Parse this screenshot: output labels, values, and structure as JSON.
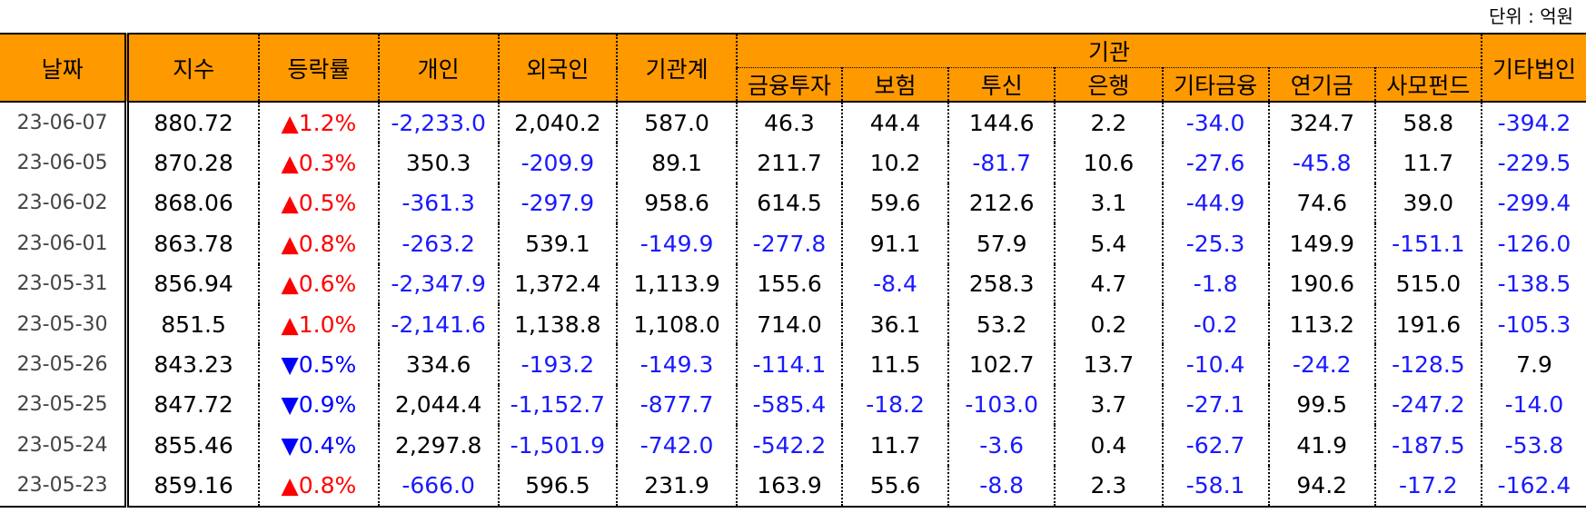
{
  "unit_label": "단위 : 억원",
  "headers": {
    "date": "날짜",
    "index": "지수",
    "change": "등락률",
    "individual": "개인",
    "foreign": "외국인",
    "institution_total": "기관계",
    "institution": "기관",
    "sub": [
      "금융투자",
      "보험",
      "투신",
      "은행",
      "기타금융",
      "연기금",
      "사모펀드"
    ],
    "other_corp": "기타법인"
  },
  "rows": [
    {
      "date": "23-06-07",
      "index": "880.72",
      "dir": "up",
      "change": "1.2%",
      "cells": [
        "-2,233.0",
        "2,040.2",
        "587.0",
        "46.3",
        "44.4",
        "144.6",
        "2.2",
        "-34.0",
        "324.7",
        "58.8",
        "-394.2"
      ]
    },
    {
      "date": "23-06-05",
      "index": "870.28",
      "dir": "up",
      "change": "0.3%",
      "cells": [
        "350.3",
        "-209.9",
        "89.1",
        "211.7",
        "10.2",
        "-81.7",
        "10.6",
        "-27.6",
        "-45.8",
        "11.7",
        "-229.5"
      ]
    },
    {
      "date": "23-06-02",
      "index": "868.06",
      "dir": "up",
      "change": "0.5%",
      "cells": [
        "-361.3",
        "-297.9",
        "958.6",
        "614.5",
        "59.6",
        "212.6",
        "3.1",
        "-44.9",
        "74.6",
        "39.0",
        "-299.4"
      ]
    },
    {
      "date": "23-06-01",
      "index": "863.78",
      "dir": "up",
      "change": "0.8%",
      "cells": [
        "-263.2",
        "539.1",
        "-149.9",
        "-277.8",
        "91.1",
        "57.9",
        "5.4",
        "-25.3",
        "149.9",
        "-151.1",
        "-126.0"
      ]
    },
    {
      "date": "23-05-31",
      "index": "856.94",
      "dir": "up",
      "change": "0.6%",
      "cells": [
        "-2,347.9",
        "1,372.4",
        "1,113.9",
        "155.6",
        "-8.4",
        "258.3",
        "4.7",
        "-1.8",
        "190.6",
        "515.0",
        "-138.5"
      ]
    },
    {
      "date": "23-05-30",
      "index": "851.5",
      "dir": "up",
      "change": "1.0%",
      "cells": [
        "-2,141.6",
        "1,138.8",
        "1,108.0",
        "714.0",
        "36.1",
        "53.2",
        "0.2",
        "-0.2",
        "113.2",
        "191.6",
        "-105.3"
      ]
    },
    {
      "date": "23-05-26",
      "index": "843.23",
      "dir": "down",
      "change": "0.5%",
      "cells": [
        "334.6",
        "-193.2",
        "-149.3",
        "-114.1",
        "11.5",
        "102.7",
        "13.7",
        "-10.4",
        "-24.2",
        "-128.5",
        "7.9"
      ]
    },
    {
      "date": "23-05-25",
      "index": "847.72",
      "dir": "down",
      "change": "0.9%",
      "cells": [
        "2,044.4",
        "-1,152.7",
        "-877.7",
        "-585.4",
        "-18.2",
        "-103.0",
        "3.7",
        "-27.1",
        "99.5",
        "-247.2",
        "-14.0"
      ]
    },
    {
      "date": "23-05-24",
      "index": "855.46",
      "dir": "down",
      "change": "0.4%",
      "cells": [
        "2,297.8",
        "-1,501.9",
        "-742.0",
        "-542.2",
        "11.7",
        "-3.6",
        "0.4",
        "-62.7",
        "41.9",
        "-187.5",
        "-53.8"
      ]
    },
    {
      "date": "23-05-23",
      "index": "859.16",
      "dir": "up",
      "change": "0.8%",
      "cells": [
        "-666.0",
        "596.5",
        "231.9",
        "163.9",
        "55.6",
        "-8.8",
        "2.3",
        "-58.1",
        "94.2",
        "-17.2",
        "-162.4"
      ]
    }
  ]
}
